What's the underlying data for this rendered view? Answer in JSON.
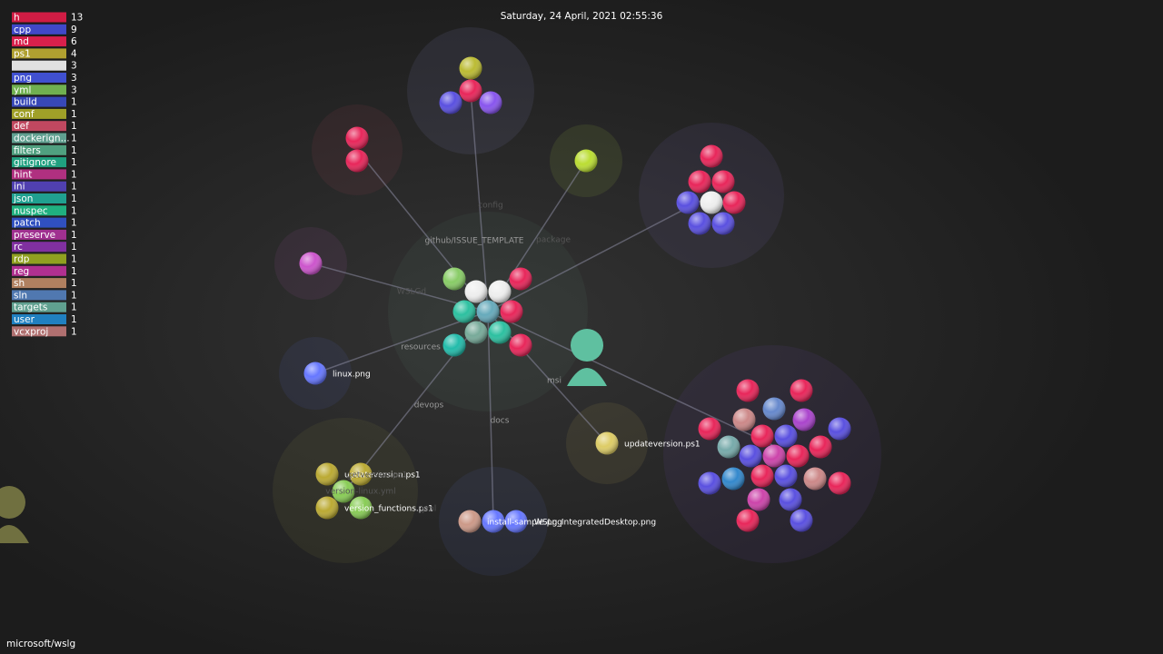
{
  "header": {
    "date": "Saturday, 24 April, 2021 02:55:36"
  },
  "legend": [
    {
      "name": "h",
      "count": 13,
      "color": "#d01c44"
    },
    {
      "name": "cpp",
      "count": 9,
      "color": "#4048c8"
    },
    {
      "name": "md",
      "count": 6,
      "color": "#d8204c"
    },
    {
      "name": "ps1",
      "count": 4,
      "color": "#b0a030"
    },
    {
      "count": 3,
      "color": "#e0e0e0"
    },
    {
      "name": "png",
      "count": 3,
      "color": "#4050d0"
    },
    {
      "name": "yml",
      "count": 3,
      "color": "#70b050"
    },
    {
      "name": "build",
      "count": 1,
      "color": "#3848b8"
    },
    {
      "name": "conf",
      "count": 1,
      "color": "#a0a028"
    },
    {
      "name": "def",
      "count": 1,
      "color": "#c04860"
    },
    {
      "name": "dockerign...",
      "count": 1,
      "color": "#60a090"
    },
    {
      "name": "filters",
      "count": 1,
      "color": "#50a080"
    },
    {
      "name": "gitignore",
      "count": 1,
      "color": "#20a080"
    },
    {
      "name": "hint",
      "count": 1,
      "color": "#b03080"
    },
    {
      "name": "ini",
      "count": 1,
      "color": "#5040b0"
    },
    {
      "name": "json",
      "count": 1,
      "color": "#20a090"
    },
    {
      "name": "nuspec",
      "count": 1,
      "color": "#20b080"
    },
    {
      "name": "patch",
      "count": 1,
      "color": "#3050c0"
    },
    {
      "name": "preserve",
      "count": 1,
      "color": "#a03090"
    },
    {
      "name": "rc",
      "count": 1,
      "color": "#8030a0"
    },
    {
      "name": "rdp",
      "count": 1,
      "color": "#90a020"
    },
    {
      "name": "reg",
      "count": 1,
      "color": "#b03090"
    },
    {
      "name": "sh",
      "count": 1,
      "color": "#b08060"
    },
    {
      "name": "sln",
      "count": 1,
      "color": "#5078b0"
    },
    {
      "name": "targets",
      "count": 1,
      "color": "#60a090"
    },
    {
      "name": "user",
      "count": 1,
      "color": "#2080c0"
    },
    {
      "name": "vcxproj",
      "count": 1,
      "color": "#b07070"
    }
  ],
  "labels": [
    "config",
    "github/ISSUE_TEMPLATE",
    "package",
    "WSLGd",
    "resources",
    "msi",
    "devops",
    "docs",
    "linux.png",
    "updateversion.ps1",
    "updateversion.ps1",
    "getversion.ps1",
    "version-linux.yml",
    "version_functions.ps1",
    "yml",
    "install-sample.png",
    "WSLg_IntegratedDesktop.png"
  ],
  "footer": {
    "repo": "microsoft/wslg"
  }
}
